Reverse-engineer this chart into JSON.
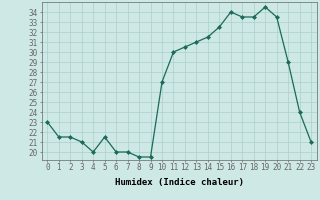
{
  "x": [
    0,
    1,
    2,
    3,
    4,
    5,
    6,
    7,
    8,
    9,
    10,
    11,
    12,
    13,
    14,
    15,
    16,
    17,
    18,
    19,
    20,
    21,
    22,
    23
  ],
  "y": [
    23.0,
    21.5,
    21.5,
    21.0,
    20.0,
    21.5,
    20.0,
    20.0,
    19.5,
    19.5,
    27.0,
    30.0,
    30.5,
    31.0,
    31.5,
    32.5,
    34.0,
    33.5,
    33.5,
    34.5,
    33.5,
    29.0,
    24.0,
    21.0
  ],
  "line_color": "#1a6b5a",
  "marker": "D",
  "marker_size": 2.0,
  "bg_color": "#cde8e5",
  "grid_color": "#aad0cc",
  "xlabel": "Humidex (Indice chaleur)",
  "ylim": [
    19.2,
    35.0
  ],
  "xlim": [
    -0.5,
    23.5
  ],
  "yticks": [
    20,
    21,
    22,
    23,
    24,
    25,
    26,
    27,
    28,
    29,
    30,
    31,
    32,
    33,
    34
  ],
  "xticks": [
    0,
    1,
    2,
    3,
    4,
    5,
    6,
    7,
    8,
    9,
    10,
    11,
    12,
    13,
    14,
    15,
    16,
    17,
    18,
    19,
    20,
    21,
    22,
    23
  ],
  "tick_fontsize": 5.5,
  "xlabel_fontsize": 6.5,
  "spine_color": "#666666",
  "lw": 0.9
}
